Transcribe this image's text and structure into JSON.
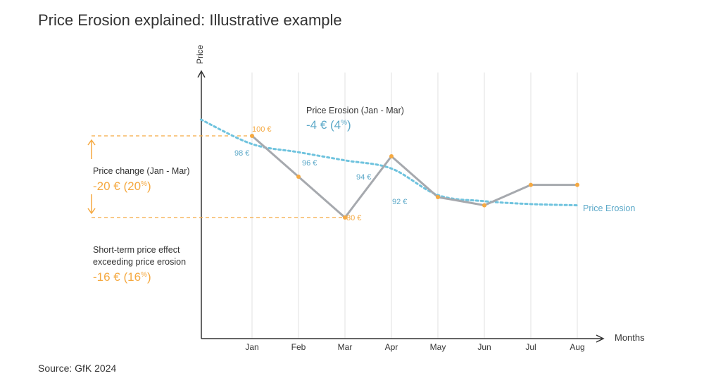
{
  "title": "Price Erosion explained: Illustrative example",
  "source": "Source: GfK 2024",
  "colors": {
    "actual": "#a6a9ae",
    "erosion": "#6fc3de",
    "orange": "#f5a941",
    "blue": "#5ba8c8",
    "grid": "#e6e6e6",
    "axis": "#333333"
  },
  "annotations": {
    "erosion_label": "Price Erosion (Jan - Mar)",
    "erosion_value": "-4 € (4",
    "price_change_label": "Price change (Jan - Mar)",
    "price_change_value": "-20 € (20",
    "short_term_line1": "Short-term price effect",
    "short_term_line2": "exceeding price erosion",
    "short_term_value": "-16 € (16",
    "pct_sign": "%",
    "close_paren": ")"
  },
  "chart_data": {
    "type": "line",
    "xlabel": "Months",
    "ylabel": "Price",
    "categories": [
      "Jan",
      "Feb",
      "Mar",
      "Apr",
      "May",
      "Jun",
      "Jul",
      "Aug"
    ],
    "series": [
      {
        "name": "",
        "values": [
          100,
          90,
          80,
          95,
          85,
          83,
          88,
          88
        ]
      },
      {
        "name": "Price Erosion",
        "x": [
          -1.1,
          0,
          1,
          2,
          3,
          4,
          5,
          6,
          7
        ],
        "values": [
          104,
          98,
          96,
          94,
          92,
          85.5,
          84,
          83.3,
          83
        ]
      }
    ],
    "ylim": [
      40,
      115
    ],
    "point_labels": [
      {
        "text": "100 €",
        "series": "actual"
      },
      {
        "text": "80 €",
        "series": "actual"
      },
      {
        "text": "98 €",
        "series": "erosion"
      },
      {
        "text": "96 €",
        "series": "erosion"
      },
      {
        "text": "94 €",
        "series": "erosion"
      },
      {
        "text": "92 €",
        "series": "erosion"
      }
    ],
    "grid": "vertical",
    "legend": "inline-right"
  }
}
